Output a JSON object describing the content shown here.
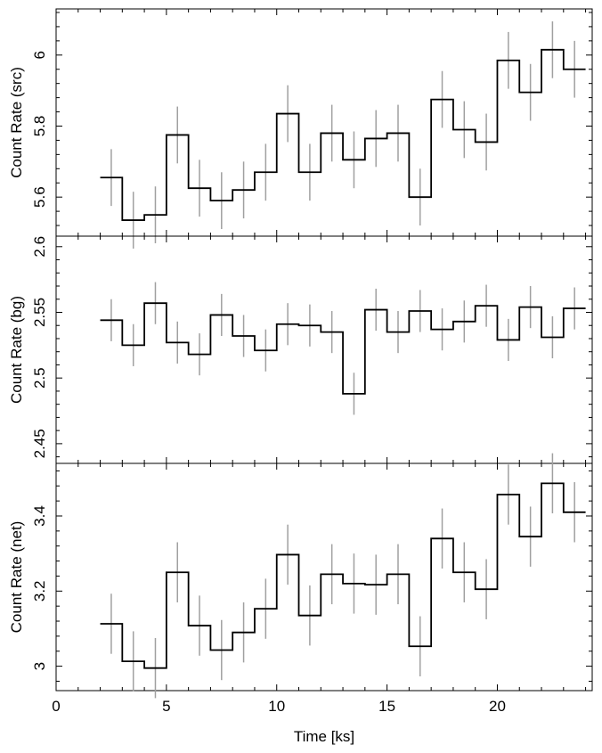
{
  "colors": {
    "step": "#000000",
    "errorbar": "#a0a0a0",
    "axis": "#000000"
  },
  "chart_data": [
    {
      "type": "line",
      "panel": "top",
      "ylabel": "Count Rate (src)",
      "ylim": [
        5.49,
        6.13
      ],
      "yticks": [
        5.6,
        5.8,
        6.0
      ],
      "ytick_labels": [
        "5.6",
        "5.8",
        "6"
      ],
      "xlim": [
        0,
        24.3
      ],
      "x": [
        2.5,
        3.5,
        4.5,
        5.5,
        6.5,
        7.5,
        8.5,
        9.5,
        10.5,
        11.5,
        12.5,
        13.5,
        14.5,
        15.5,
        16.5,
        17.5,
        18.5,
        19.5,
        20.5,
        21.5,
        22.5,
        23.5
      ],
      "values": [
        5.655,
        5.535,
        5.55,
        5.775,
        5.625,
        5.59,
        5.62,
        5.67,
        5.835,
        5.67,
        5.78,
        5.705,
        5.765,
        5.78,
        5.6,
        5.875,
        5.79,
        5.755,
        5.985,
        5.895,
        6.015,
        5.96
      ],
      "errors": [
        0.08,
        0.08,
        0.08,
        0.08,
        0.08,
        0.08,
        0.08,
        0.08,
        0.08,
        0.08,
        0.08,
        0.08,
        0.08,
        0.08,
        0.08,
        0.08,
        0.08,
        0.08,
        0.08,
        0.08,
        0.08,
        0.08
      ],
      "grid": false
    },
    {
      "type": "line",
      "panel": "middle",
      "ylabel": "Count Rate (bg)",
      "ylim": [
        2.435,
        2.608
      ],
      "yticks": [
        2.45,
        2.5,
        2.55,
        2.6
      ],
      "ytick_labels": [
        "2.45",
        "2.5",
        "2.55",
        "2.6"
      ],
      "xlim": [
        0,
        24.3
      ],
      "x": [
        2.5,
        3.5,
        4.5,
        5.5,
        6.5,
        7.5,
        8.5,
        9.5,
        10.5,
        11.5,
        12.5,
        13.5,
        14.5,
        15.5,
        16.5,
        17.5,
        18.5,
        19.5,
        20.5,
        21.5,
        22.5,
        23.5
      ],
      "values": [
        2.544,
        2.525,
        2.557,
        2.527,
        2.518,
        2.548,
        2.532,
        2.521,
        2.541,
        2.54,
        2.535,
        2.488,
        2.552,
        2.535,
        2.551,
        2.537,
        2.543,
        2.555,
        2.529,
        2.554,
        2.531,
        2.553
      ],
      "errors": [
        0.016,
        0.016,
        0.016,
        0.016,
        0.016,
        0.016,
        0.016,
        0.016,
        0.016,
        0.016,
        0.016,
        0.016,
        0.016,
        0.016,
        0.016,
        0.016,
        0.016,
        0.016,
        0.016,
        0.016,
        0.016,
        0.016
      ],
      "grid": false
    },
    {
      "type": "line",
      "panel": "bottom",
      "ylabel": "Count Rate (net)",
      "xlabel": "Time [ks]",
      "ylim": [
        2.935,
        3.54
      ],
      "yticks": [
        3.0,
        3.2,
        3.4
      ],
      "ytick_labels": [
        "3",
        "3.2",
        "3.4"
      ],
      "xlim": [
        0,
        24.3
      ],
      "xticks": [
        0,
        5,
        10,
        15,
        20
      ],
      "xtick_labels": [
        "0",
        "5",
        "10",
        "15",
        "20"
      ],
      "x": [
        2.5,
        3.5,
        4.5,
        5.5,
        6.5,
        7.5,
        8.5,
        9.5,
        10.5,
        11.5,
        12.5,
        13.5,
        14.5,
        15.5,
        16.5,
        17.5,
        18.5,
        19.5,
        20.5,
        21.5,
        22.5,
        23.5
      ],
      "values": [
        3.113,
        3.013,
        2.995,
        3.25,
        3.108,
        3.043,
        3.09,
        3.153,
        3.297,
        3.135,
        3.245,
        3.22,
        3.217,
        3.245,
        3.053,
        3.34,
        3.25,
        3.205,
        3.457,
        3.345,
        3.487,
        3.41
      ],
      "errors": [
        0.08,
        0.08,
        0.08,
        0.08,
        0.08,
        0.08,
        0.08,
        0.08,
        0.08,
        0.08,
        0.08,
        0.08,
        0.08,
        0.08,
        0.08,
        0.08,
        0.08,
        0.08,
        0.08,
        0.08,
        0.08,
        0.08
      ],
      "grid": false
    }
  ]
}
